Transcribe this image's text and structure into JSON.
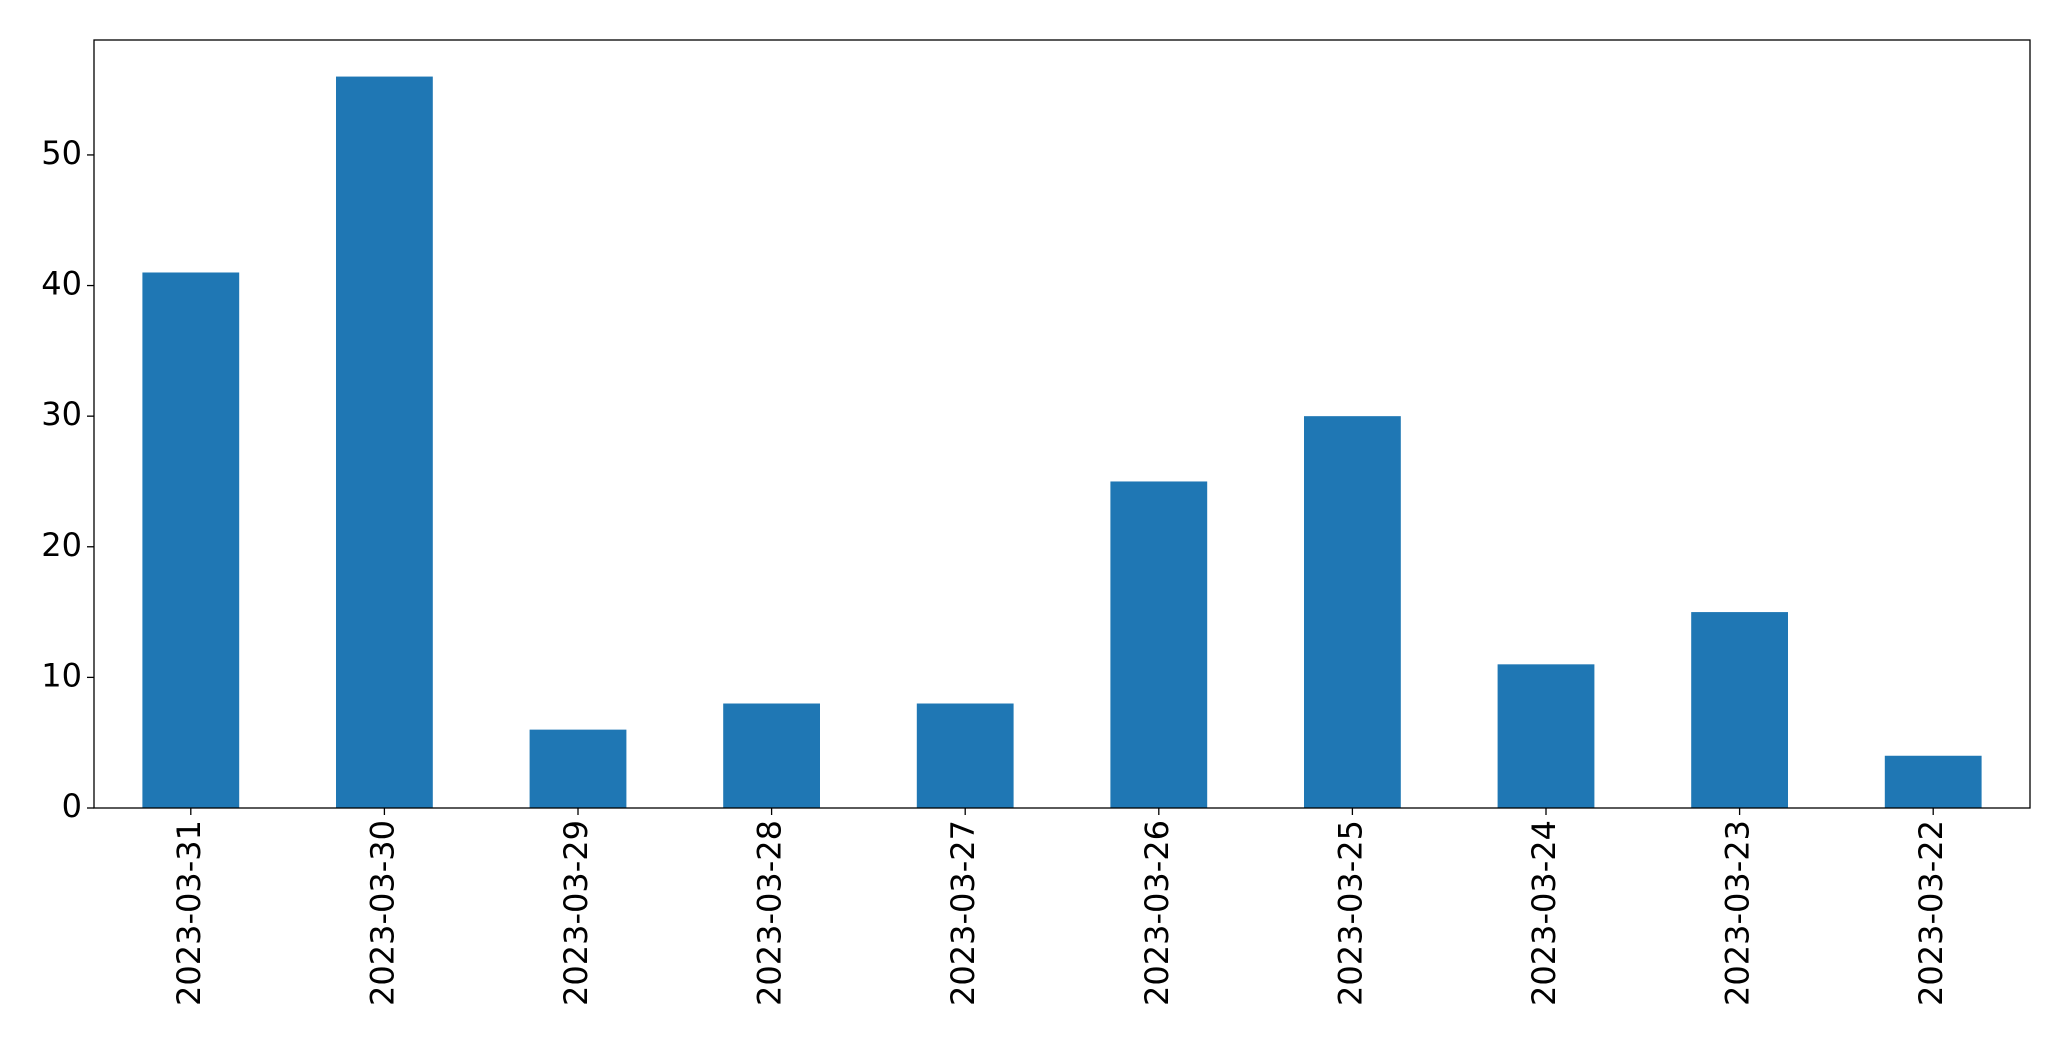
{
  "chart_data": {
    "type": "bar",
    "categories": [
      "2023-03-31",
      "2023-03-30",
      "2023-03-29",
      "2023-03-28",
      "2023-03-27",
      "2023-03-26",
      "2023-03-25",
      "2023-03-24",
      "2023-03-23",
      "2023-03-22"
    ],
    "values": [
      41,
      56,
      6,
      8,
      8,
      25,
      30,
      11,
      15,
      4
    ],
    "color": "#1f77b4",
    "ylim": [
      0,
      58.8
    ],
    "yticks": [
      0,
      10,
      20,
      30,
      40,
      50
    ],
    "grid": false
  }
}
